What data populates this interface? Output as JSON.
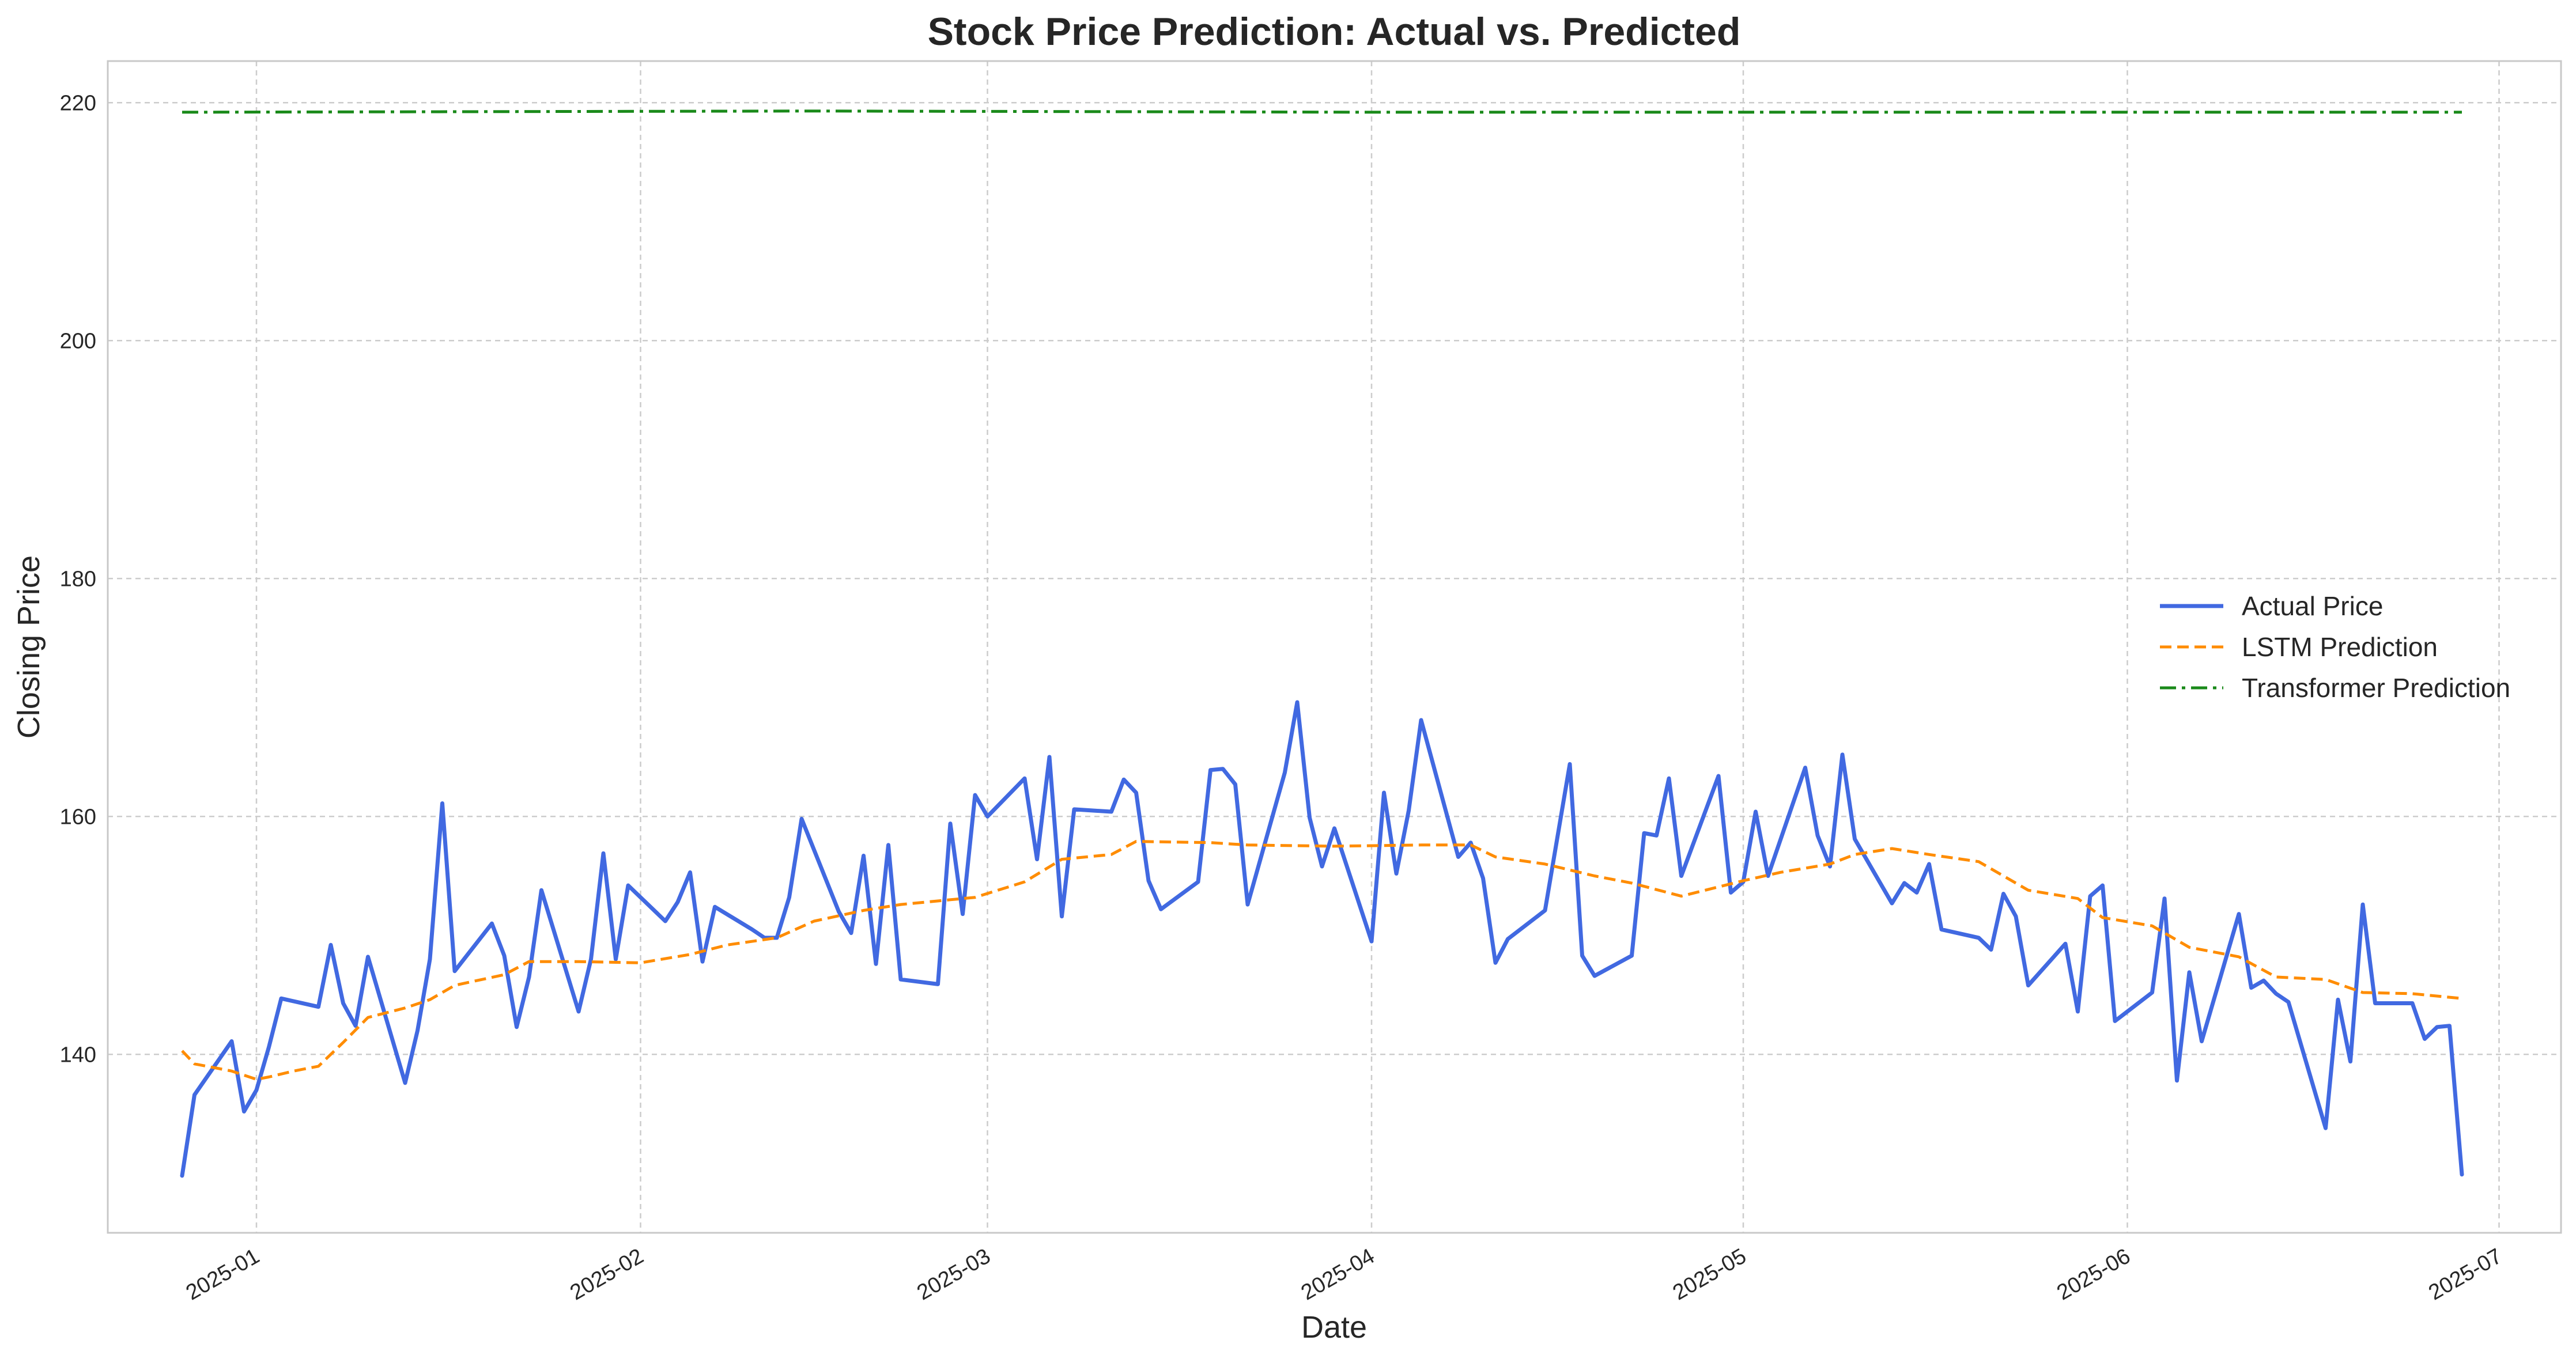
{
  "chart_data": {
    "type": "line",
    "title": "Stock Price Prediction: Actual vs. Predicted",
    "xlabel": "Date",
    "ylabel": "Closing Price",
    "xlim": [
      "2024-12-20",
      "2025-07-06"
    ],
    "ylim": [
      125,
      223.5
    ],
    "x_ticks": [
      "2025-01-01",
      "2025-02-01",
      "2025-03-01",
      "2025-04-01",
      "2025-05-01",
      "2025-06-01",
      "2025-07-01"
    ],
    "x_tick_labels": [
      "2025-01",
      "2025-02",
      "2025-03",
      "2025-04",
      "2025-05",
      "2025-06",
      "2025-07"
    ],
    "y_ticks": [
      140,
      160,
      180,
      200,
      220
    ],
    "grid": true,
    "legend_position": "center-right",
    "series": [
      {
        "name": "Actual Price",
        "color": "#4169e1",
        "style": "solid",
        "points": [
          [
            "2024-12-26",
            129.8
          ],
          [
            "2024-12-27",
            136.6
          ],
          [
            "2024-12-30",
            141.1
          ],
          [
            "2024-12-31",
            135.2
          ],
          [
            "2025-01-01",
            137.0
          ],
          [
            "2025-01-02",
            140.6
          ],
          [
            "2025-01-03",
            144.7
          ],
          [
            "2025-01-06",
            144.0
          ],
          [
            "2025-01-07",
            149.2
          ],
          [
            "2025-01-08",
            144.3
          ],
          [
            "2025-01-09",
            142.4
          ],
          [
            "2025-01-10",
            148.2
          ],
          [
            "2025-01-13",
            137.6
          ],
          [
            "2025-01-14",
            142.0
          ],
          [
            "2025-01-15",
            148.0
          ],
          [
            "2025-01-16",
            161.1
          ],
          [
            "2025-01-17",
            147.0
          ],
          [
            "2025-01-20",
            151.0
          ],
          [
            "2025-01-21",
            148.3
          ],
          [
            "2025-01-22",
            142.3
          ],
          [
            "2025-01-23",
            146.5
          ],
          [
            "2025-01-24",
            153.8
          ],
          [
            "2025-01-27",
            143.6
          ],
          [
            "2025-01-28",
            148.0
          ],
          [
            "2025-01-29",
            156.9
          ],
          [
            "2025-01-30",
            148.0
          ],
          [
            "2025-01-31",
            154.2
          ],
          [
            "2025-02-03",
            151.2
          ],
          [
            "2025-02-04",
            152.8
          ],
          [
            "2025-02-05",
            155.3
          ],
          [
            "2025-02-06",
            147.8
          ],
          [
            "2025-02-07",
            152.4
          ],
          [
            "2025-02-10",
            150.5
          ],
          [
            "2025-02-11",
            149.8
          ],
          [
            "2025-02-12",
            149.8
          ],
          [
            "2025-02-13",
            153.2
          ],
          [
            "2025-02-14",
            159.8
          ],
          [
            "2025-02-17",
            152.0
          ],
          [
            "2025-02-18",
            150.2
          ],
          [
            "2025-02-19",
            156.7
          ],
          [
            "2025-02-20",
            147.6
          ],
          [
            "2025-02-21",
            157.6
          ],
          [
            "2025-02-22",
            146.3
          ],
          [
            "2025-02-25",
            145.9
          ],
          [
            "2025-02-26",
            159.4
          ],
          [
            "2025-02-27",
            151.8
          ],
          [
            "2025-02-28",
            161.8
          ],
          [
            "2025-03-01",
            160.0
          ],
          [
            "2025-03-04",
            163.2
          ],
          [
            "2025-03-05",
            156.4
          ],
          [
            "2025-03-06",
            165.0
          ],
          [
            "2025-03-07",
            151.6
          ],
          [
            "2025-03-08",
            160.6
          ],
          [
            "2025-03-11",
            160.4
          ],
          [
            "2025-03-12",
            163.1
          ],
          [
            "2025-03-13",
            162.0
          ],
          [
            "2025-03-14",
            154.6
          ],
          [
            "2025-03-15",
            152.2
          ],
          [
            "2025-03-18",
            154.5
          ],
          [
            "2025-03-19",
            163.9
          ],
          [
            "2025-03-20",
            164.0
          ],
          [
            "2025-03-21",
            162.7
          ],
          [
            "2025-03-22",
            152.6
          ],
          [
            "2025-03-25",
            163.7
          ],
          [
            "2025-03-26",
            169.6
          ],
          [
            "2025-03-27",
            159.9
          ],
          [
            "2025-03-28",
            155.8
          ],
          [
            "2025-03-29",
            159.0
          ],
          [
            "2025-04-01",
            149.5
          ],
          [
            "2025-04-02",
            162.0
          ],
          [
            "2025-04-03",
            155.2
          ],
          [
            "2025-04-04",
            160.5
          ],
          [
            "2025-04-05",
            168.1
          ],
          [
            "2025-04-08",
            156.6
          ],
          [
            "2025-04-09",
            157.8
          ],
          [
            "2025-04-10",
            154.8
          ],
          [
            "2025-04-11",
            147.7
          ],
          [
            "2025-04-12",
            149.7
          ],
          [
            "2025-04-15",
            152.1
          ],
          [
            "2025-04-17",
            164.4
          ],
          [
            "2025-04-18",
            148.3
          ],
          [
            "2025-04-19",
            146.6
          ],
          [
            "2025-04-22",
            148.3
          ],
          [
            "2025-04-23",
            158.6
          ],
          [
            "2025-04-24",
            158.4
          ],
          [
            "2025-04-25",
            163.2
          ],
          [
            "2025-04-26",
            155.0
          ],
          [
            "2025-04-29",
            163.4
          ],
          [
            "2025-04-30",
            153.6
          ],
          [
            "2025-05-01",
            154.5
          ],
          [
            "2025-05-02",
            160.4
          ],
          [
            "2025-05-03",
            155.0
          ],
          [
            "2025-05-06",
            164.1
          ],
          [
            "2025-05-07",
            158.4
          ],
          [
            "2025-05-08",
            155.8
          ],
          [
            "2025-05-09",
            165.2
          ],
          [
            "2025-05-10",
            158.1
          ],
          [
            "2025-05-13",
            152.7
          ],
          [
            "2025-05-14",
            154.4
          ],
          [
            "2025-05-15",
            153.6
          ],
          [
            "2025-05-16",
            156.0
          ],
          [
            "2025-05-17",
            150.5
          ],
          [
            "2025-05-20",
            149.8
          ],
          [
            "2025-05-21",
            148.8
          ],
          [
            "2025-05-22",
            153.5
          ],
          [
            "2025-05-23",
            151.6
          ],
          [
            "2025-05-24",
            145.8
          ],
          [
            "2025-05-27",
            149.3
          ],
          [
            "2025-05-28",
            143.6
          ],
          [
            "2025-05-29",
            153.3
          ],
          [
            "2025-05-30",
            154.2
          ],
          [
            "2025-05-31",
            142.8
          ],
          [
            "2025-06-03",
            145.2
          ],
          [
            "2025-06-04",
            153.1
          ],
          [
            "2025-06-05",
            137.8
          ],
          [
            "2025-06-06",
            146.9
          ],
          [
            "2025-06-07",
            141.1
          ],
          [
            "2025-06-10",
            151.8
          ],
          [
            "2025-06-11",
            145.6
          ],
          [
            "2025-06-12",
            146.2
          ],
          [
            "2025-06-13",
            145.1
          ],
          [
            "2025-06-14",
            144.4
          ],
          [
            "2025-06-17",
            133.8
          ],
          [
            "2025-06-18",
            144.6
          ],
          [
            "2025-06-19",
            139.4
          ],
          [
            "2025-06-20",
            152.6
          ],
          [
            "2025-06-21",
            144.3
          ],
          [
            "2025-06-24",
            144.3
          ],
          [
            "2025-06-25",
            141.3
          ],
          [
            "2025-06-26",
            142.3
          ],
          [
            "2025-06-27",
            142.4
          ],
          [
            "2025-06-28",
            129.9
          ]
        ]
      },
      {
        "name": "LSTM Prediction",
        "color": "#ff8c00",
        "style": "dashed",
        "points": [
          [
            "2024-12-26",
            140.3
          ],
          [
            "2024-12-27",
            139.2
          ],
          [
            "2024-12-30",
            138.6
          ],
          [
            "2025-01-01",
            137.9
          ],
          [
            "2025-01-02",
            138.1
          ],
          [
            "2025-01-04",
            138.6
          ],
          [
            "2025-01-06",
            139.0
          ],
          [
            "2025-01-08",
            141.0
          ],
          [
            "2025-01-10",
            143.1
          ],
          [
            "2025-01-13",
            143.9
          ],
          [
            "2025-01-15",
            144.6
          ],
          [
            "2025-01-17",
            145.8
          ],
          [
            "2025-01-21",
            146.7
          ],
          [
            "2025-01-23",
            147.8
          ],
          [
            "2025-01-27",
            147.8
          ],
          [
            "2025-02-01",
            147.7
          ],
          [
            "2025-02-05",
            148.4
          ],
          [
            "2025-02-08",
            149.2
          ],
          [
            "2025-02-12",
            149.8
          ],
          [
            "2025-02-15",
            151.2
          ],
          [
            "2025-02-19",
            152.1
          ],
          [
            "2025-02-22",
            152.6
          ],
          [
            "2025-02-28",
            153.2
          ],
          [
            "2025-03-04",
            154.5
          ],
          [
            "2025-03-07",
            156.4
          ],
          [
            "2025-03-11",
            156.8
          ],
          [
            "2025-03-13",
            157.9
          ],
          [
            "2025-03-19",
            157.8
          ],
          [
            "2025-03-22",
            157.6
          ],
          [
            "2025-03-29",
            157.5
          ],
          [
            "2025-04-05",
            157.6
          ],
          [
            "2025-04-09",
            157.6
          ],
          [
            "2025-04-11",
            156.6
          ],
          [
            "2025-04-15",
            156.0
          ],
          [
            "2025-04-19",
            155.0
          ],
          [
            "2025-04-22",
            154.4
          ],
          [
            "2025-04-26",
            153.3
          ],
          [
            "2025-05-01",
            154.6
          ],
          [
            "2025-05-04",
            155.3
          ],
          [
            "2025-05-08",
            156.0
          ],
          [
            "2025-05-10",
            156.8
          ],
          [
            "2025-05-13",
            157.3
          ],
          [
            "2025-05-16",
            156.8
          ],
          [
            "2025-05-20",
            156.2
          ],
          [
            "2025-05-24",
            153.8
          ],
          [
            "2025-05-28",
            153.1
          ],
          [
            "2025-05-30",
            151.5
          ],
          [
            "2025-06-03",
            150.8
          ],
          [
            "2025-06-06",
            149.0
          ],
          [
            "2025-06-10",
            148.2
          ],
          [
            "2025-06-13",
            146.5
          ],
          [
            "2025-06-17",
            146.3
          ],
          [
            "2025-06-20",
            145.2
          ],
          [
            "2025-06-24",
            145.1
          ],
          [
            "2025-06-28",
            144.7
          ]
        ]
      },
      {
        "name": "Transformer Prediction",
        "color": "#1a8a1a",
        "style": "dashdot",
        "points": [
          [
            "2024-12-26",
            219.2
          ],
          [
            "2025-02-15",
            219.3
          ],
          [
            "2025-04-01",
            219.2
          ],
          [
            "2025-06-28",
            219.2
          ]
        ]
      }
    ]
  }
}
